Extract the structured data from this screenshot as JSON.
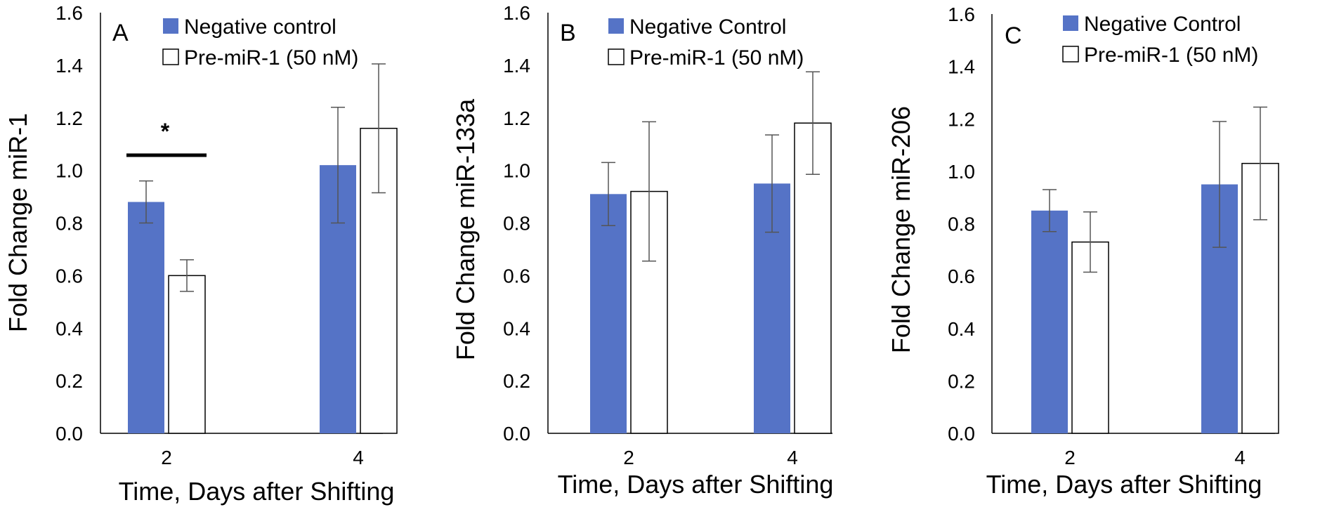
{
  "colors": {
    "negative": "#5573c6",
    "pre": "#ffffff",
    "axis": "#000000",
    "error": "#555555"
  },
  "chart_data": [
    {
      "type": "bar",
      "panel": "A",
      "ylabel": "Fold Change miR-1",
      "xlabel": "Time, Days after Shifting",
      "ylim": [
        0,
        1.6
      ],
      "yticks": [
        "0.0",
        "0.2",
        "0.4",
        "0.6",
        "0.8",
        "1.0",
        "1.2",
        "1.4",
        "1.6"
      ],
      "categories": [
        "2",
        "4"
      ],
      "series": [
        {
          "name": "Negative control",
          "values": [
            0.88,
            1.02
          ],
          "errors": [
            0.08,
            0.22
          ]
        },
        {
          "name": "Pre-miR-1 (50 nM)",
          "values": [
            0.6,
            1.16
          ],
          "errors": [
            0.06,
            0.245
          ]
        }
      ],
      "significance": {
        "category": "2",
        "label": "*"
      }
    },
    {
      "type": "bar",
      "panel": "B",
      "ylabel": "Fold Change miR-133a",
      "xlabel": "Time, Days after Shifting",
      "ylim": [
        0,
        1.6
      ],
      "yticks": [
        "0.0",
        "0.2",
        "0.4",
        "0.6",
        "0.8",
        "1.0",
        "1.2",
        "1.4",
        "1.6"
      ],
      "categories": [
        "2",
        "4"
      ],
      "series": [
        {
          "name": "Negative Control",
          "values": [
            0.91,
            0.95
          ],
          "errors": [
            0.12,
            0.185
          ]
        },
        {
          "name": "Pre-miR-1 (50 nM)",
          "values": [
            0.92,
            1.18
          ],
          "errors": [
            0.265,
            0.195
          ]
        }
      ]
    },
    {
      "type": "bar",
      "panel": "C",
      "ylabel": "Fold Change miR-206",
      "xlabel": "Time, Days after Shifting",
      "ylim": [
        0,
        1.6
      ],
      "yticks": [
        "0.0",
        "0.2",
        "0.4",
        "0.6",
        "0.8",
        "1.0",
        "1.2",
        "1.4",
        "1.6"
      ],
      "categories": [
        "2",
        "4"
      ],
      "series": [
        {
          "name": "Negative Control",
          "values": [
            0.85,
            0.95
          ],
          "errors": [
            0.08,
            0.24
          ]
        },
        {
          "name": "Pre-miR-1 (50 nM)",
          "values": [
            0.73,
            1.03
          ],
          "errors": [
            0.115,
            0.215
          ]
        }
      ]
    }
  ]
}
